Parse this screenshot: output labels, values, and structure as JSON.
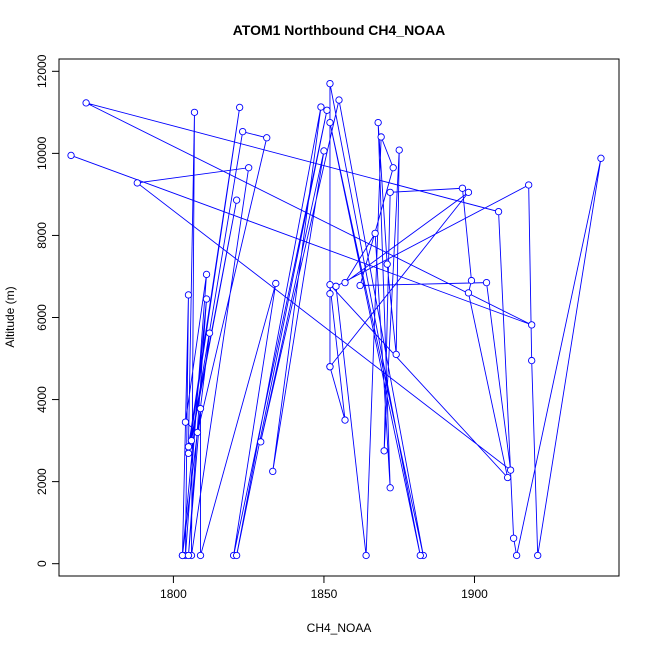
{
  "chart_data": {
    "type": "line",
    "title": "ATOM1 Northbound CH4_NOAA",
    "xlabel": "CH4_NOAA",
    "ylabel": "Altitude (m)",
    "xlim": [
      1762,
      1948
    ],
    "ylim": [
      -300,
      12300
    ],
    "x_ticks": [
      1800,
      1850,
      1900
    ],
    "y_ticks": [
      0,
      2000,
      4000,
      6000,
      8000,
      10000,
      12000
    ],
    "x_tick_labels": [
      "1800",
      "1850",
      "1900"
    ],
    "y_tick_labels": [
      "0",
      "2000",
      "4000",
      "6000",
      "8000",
      "10000",
      "12000"
    ],
    "grid": false,
    "legend": "none",
    "series_color": "#0000ff",
    "series": [
      {
        "name": "",
        "points": [
          [
            1766,
            9950
          ],
          [
            1919,
            5820
          ],
          [
            1771,
            11230
          ],
          [
            1908,
            8580
          ],
          [
            1913,
            620
          ],
          [
            1914,
            200
          ],
          [
            1942,
            9880
          ],
          [
            1921,
            200
          ],
          [
            1919,
            4950
          ],
          [
            1918,
            9230
          ],
          [
            1854,
            6760
          ],
          [
            1864,
            200
          ],
          [
            1869,
            10400
          ],
          [
            1873,
            9650
          ],
          [
            1862,
            6780
          ],
          [
            1904,
            6850
          ],
          [
            1912,
            2280
          ],
          [
            1788,
            9280
          ],
          [
            1825,
            9650
          ],
          [
            1806,
            200
          ],
          [
            1807,
            11000
          ],
          [
            1805,
            2850
          ],
          [
            1822,
            11120
          ],
          [
            1805,
            2690
          ],
          [
            1821,
            8860
          ],
          [
            1806,
            3000
          ],
          [
            1823,
            10530
          ],
          [
            1831,
            10380
          ],
          [
            1808,
            3200
          ],
          [
            1804,
            3450
          ],
          [
            1811,
            7050
          ],
          [
            1804,
            200
          ],
          [
            1805,
            6550
          ],
          [
            1803,
            200
          ],
          [
            1812,
            5620
          ],
          [
            1803,
            200
          ],
          [
            1811,
            6450
          ],
          [
            1805,
            200
          ],
          [
            1809,
            3780
          ],
          [
            1809,
            200
          ],
          [
            1834,
            6830
          ],
          [
            1820,
            200
          ],
          [
            1851,
            11050
          ],
          [
            1821,
            200
          ],
          [
            1849,
            11130
          ],
          [
            1833,
            2250
          ],
          [
            1850,
            10060
          ],
          [
            1829,
            2970
          ],
          [
            1855,
            11300
          ],
          [
            1883,
            200
          ],
          [
            1852,
            10750
          ],
          [
            1882,
            200
          ],
          [
            1852,
            11700
          ],
          [
            1852,
            6580
          ],
          [
            1852,
            4800
          ],
          [
            1898,
            9050
          ],
          [
            1857,
            6850
          ],
          [
            1867,
            8050
          ],
          [
            1872,
            1850
          ],
          [
            1868,
            10750
          ],
          [
            1871,
            7300
          ],
          [
            1874,
            5100
          ],
          [
            1875,
            10080
          ],
          [
            1870,
            2750
          ],
          [
            1872,
            9050
          ],
          [
            1896,
            9150
          ],
          [
            1899,
            6900
          ],
          [
            1898,
            6600
          ],
          [
            1911,
            2100
          ],
          [
            1852,
            6800
          ],
          [
            1857,
            3500
          ],
          [
            1852,
            4800
          ]
        ]
      }
    ]
  }
}
